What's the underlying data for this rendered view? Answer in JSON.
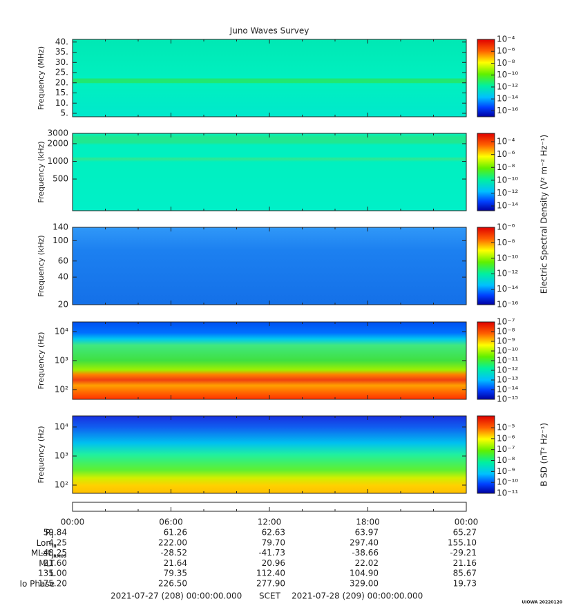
{
  "chart_data": [
    {
      "type": "spectrogram",
      "title": "Juno Waves Survey",
      "ylabel": "Frequency (MHz)",
      "yscale": "linear",
      "ylim": [
        3.3,
        41.3
      ],
      "yticks": [
        {
          "value": 5,
          "label": "5."
        },
        {
          "value": 10,
          "label": "10."
        },
        {
          "value": 15,
          "label": "15."
        },
        {
          "value": 20,
          "label": "20."
        },
        {
          "value": 25,
          "label": "25."
        },
        {
          "value": 30,
          "label": "30."
        },
        {
          "value": 35,
          "label": "35."
        },
        {
          "value": 40,
          "label": "40."
        }
      ],
      "colorbar": {
        "scale": "log",
        "lim": [
          1e-17,
          0.0001
        ],
        "ticks": [
          {
            "value": 0.0001,
            "label": "10⁻⁴"
          },
          {
            "value": 1e-06,
            "label": "10⁻⁶"
          },
          {
            "value": 1e-08,
            "label": "10⁻⁸"
          },
          {
            "value": 1e-10,
            "label": "10⁻¹⁰"
          },
          {
            "value": 1e-12,
            "label": "10⁻¹²"
          },
          {
            "value": 1e-14,
            "label": "10⁻¹⁴"
          },
          {
            "value": 1e-16,
            "label": "10⁻¹⁶"
          }
        ]
      }
    },
    {
      "type": "spectrogram",
      "ylabel": "Frequency (kHz)",
      "yscale": "log",
      "ylim": [
        144,
        3000
      ],
      "yticks": [
        500,
        1000,
        2000,
        3000
      ],
      "colorbar": {
        "scale": "log",
        "lim": [
          1.8e-15,
          0.002
        ],
        "label": "Electric Spectral Density (V² m⁻² Hz⁻¹)",
        "ticks": [
          {
            "value": 0.0001,
            "label": "10⁻⁴"
          },
          {
            "value": 1e-06,
            "label": "10⁻⁶"
          },
          {
            "value": 1e-08,
            "label": "10⁻⁸"
          },
          {
            "value": 1e-10,
            "label": "10⁻¹⁰"
          },
          {
            "value": 1e-12,
            "label": "10⁻¹²"
          },
          {
            "value": 1e-14,
            "label": "10⁻¹⁴"
          }
        ]
      }
    },
    {
      "type": "spectrogram",
      "ylabel": "Frequency (kHz)",
      "yscale": "log",
      "ylim": [
        20,
        140
      ],
      "yticks": [
        20,
        40,
        60,
        100,
        140
      ],
      "colorbar": {
        "scale": "log",
        "lim": [
          1e-16,
          1e-06
        ],
        "ticks": [
          {
            "value": 1e-06,
            "label": "10⁻⁶"
          },
          {
            "value": 1e-08,
            "label": "10⁻⁸"
          },
          {
            "value": 1e-10,
            "label": "10⁻¹⁰"
          },
          {
            "value": 1e-12,
            "label": "10⁻¹²"
          },
          {
            "value": 1e-14,
            "label": "10⁻¹⁴"
          },
          {
            "value": 1e-16,
            "label": "10⁻¹⁶"
          }
        ]
      }
    },
    {
      "type": "spectrogram",
      "ylabel": "Frequency (Hz)",
      "yscale": "log",
      "ylim": [
        46,
        21500
      ],
      "yticks": [
        {
          "value": 100,
          "label": "10²"
        },
        {
          "value": 1000,
          "label": "10³"
        },
        {
          "value": 10000,
          "label": "10⁴"
        }
      ],
      "colorbar": {
        "scale": "log",
        "lim": [
          1e-15,
          1e-07
        ],
        "ticks": [
          {
            "value": 1e-07,
            "label": "10⁻⁷"
          },
          {
            "value": 1e-08,
            "label": "10⁻⁸"
          },
          {
            "value": 1e-09,
            "label": "10⁻⁹"
          },
          {
            "value": 1e-10,
            "label": "10⁻¹⁰"
          },
          {
            "value": 1e-11,
            "label": "10⁻¹¹"
          },
          {
            "value": 1e-12,
            "label": "10⁻¹²"
          },
          {
            "value": 1e-13,
            "label": "10⁻¹³"
          },
          {
            "value": 1e-14,
            "label": "10⁻¹⁴"
          },
          {
            "value": 1e-15,
            "label": "10⁻¹⁵"
          }
        ]
      }
    },
    {
      "type": "spectrogram",
      "ylabel": "Frequency (Hz)",
      "yscale": "log",
      "ylim": [
        52,
        24000
      ],
      "yticks": [
        {
          "value": 100,
          "label": "10²"
        },
        {
          "value": 1000,
          "label": "10³"
        },
        {
          "value": 10000,
          "label": "10⁴"
        }
      ],
      "colorbar": {
        "scale": "log",
        "lim": [
          1e-11,
          0.00012
        ],
        "label": "B SD (nT² Hz⁻¹)",
        "ticks": [
          {
            "value": 1e-05,
            "label": "10⁻⁵"
          },
          {
            "value": 1e-06,
            "label": "10⁻⁶"
          },
          {
            "value": 1e-07,
            "label": "10⁻⁷"
          },
          {
            "value": 1e-08,
            "label": "10⁻⁸"
          },
          {
            "value": 1e-09,
            "label": "10⁻⁹"
          },
          {
            "value": 1e-10,
            "label": "10⁻¹⁰"
          },
          {
            "value": 1e-11,
            "label": "10⁻¹¹"
          }
        ]
      }
    }
  ],
  "time_axis": {
    "ticks": [
      "00:00",
      "06:00",
      "12:00",
      "18:00",
      "00:00"
    ]
  },
  "ephemeris": {
    "rows": [
      {
        "label": "R",
        "sub": "J",
        "values": [
          "59.84",
          "61.26",
          "62.63",
          "63.97",
          "65.27"
        ]
      },
      {
        "label": "Lon",
        "sub": "III",
        "values": [
          "4.25",
          "222.00",
          "79.70",
          "297.40",
          "155.10"
        ]
      },
      {
        "label": "MLat",
        "sub": "JRM09",
        "values": [
          "-48.25",
          "-28.52",
          "-41.73",
          "-38.66",
          "-29.21"
        ]
      },
      {
        "label": "MLT",
        "values": [
          "21.60",
          "21.64",
          "20.96",
          "22.02",
          "21.16"
        ]
      },
      {
        "label": "L",
        "values": [
          "135.00",
          "79.35",
          "112.40",
          "104.90",
          "85.67"
        ]
      },
      {
        "label": "Io Phase",
        "values": [
          "175.20",
          "226.50",
          "277.90",
          "329.00",
          "19.73"
        ]
      }
    ]
  },
  "footer": {
    "start": "2021-07-27 (208) 00:00:00.000",
    "scet": "SCET",
    "end": "2021-07-28 (209) 00:00:00.000",
    "stamp": "UIOWA 20220120"
  }
}
